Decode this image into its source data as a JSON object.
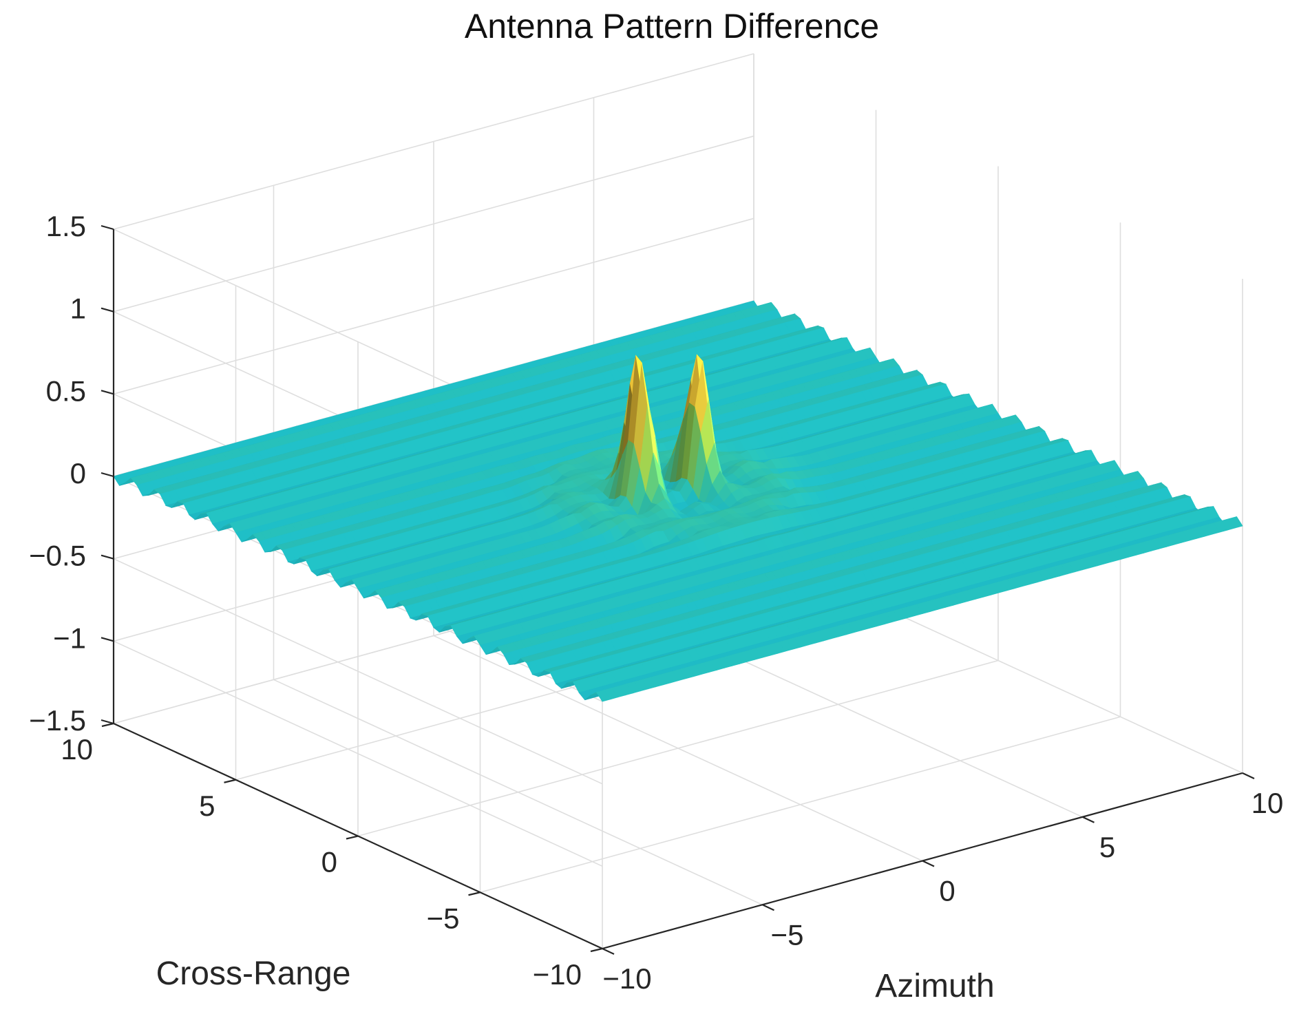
{
  "chart_data": {
    "type": "surface",
    "title": "Antenna Pattern Difference",
    "xlabel": "Azimuth",
    "ylabel": "Cross-Range",
    "zlabel": "",
    "xlim": [
      -10,
      10
    ],
    "ylim": [
      -10,
      10
    ],
    "zlim": [
      -1.5,
      1.5
    ],
    "x_ticks": [
      {
        "value": -10,
        "label": "−10"
      },
      {
        "value": -5,
        "label": "−5"
      },
      {
        "value": 0,
        "label": "0"
      },
      {
        "value": 5,
        "label": "5"
      },
      {
        "value": 10,
        "label": "10"
      }
    ],
    "y_ticks": [
      {
        "value": -10,
        "label": "−10"
      },
      {
        "value": -5,
        "label": "−5"
      },
      {
        "value": 0,
        "label": "0"
      },
      {
        "value": 5,
        "label": "5"
      },
      {
        "value": 10,
        "label": "10"
      }
    ],
    "z_ticks": [
      {
        "value": -1.5,
        "label": "−1.5"
      },
      {
        "value": -1,
        "label": "−1"
      },
      {
        "value": -0.5,
        "label": "−0.5"
      },
      {
        "value": 0,
        "label": "0"
      },
      {
        "value": 0.5,
        "label": "0.5"
      },
      {
        "value": 1,
        "label": "1"
      },
      {
        "value": 1.5,
        "label": "1.5"
      }
    ],
    "grid": true,
    "colormap": "parula",
    "surface_base_color": "#1fb8be",
    "peaks": [
      {
        "x": -0.9,
        "y": 0.4,
        "z": 0.92
      },
      {
        "x": 0.9,
        "y": 0.4,
        "z": 0.82
      }
    ],
    "ripple": {
      "amplitude": 0.04,
      "period": 1.0,
      "axis": "cross-range"
    }
  }
}
